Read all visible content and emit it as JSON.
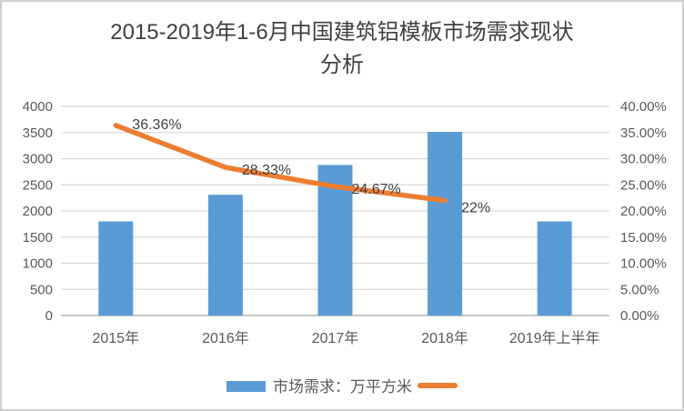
{
  "chart_data": {
    "type": "bar",
    "combo": "bar+line",
    "title": "2015-2019年1-6月中国建筑铝模板市场需求现状分析",
    "categories": [
      "2015年",
      "2016年",
      "2017年",
      "2018年",
      "2019年上半年"
    ],
    "series": [
      {
        "name": "市场需求：万平方米",
        "type": "bar",
        "axis": "left",
        "color": "#5B9BD5",
        "values": [
          1800,
          2310,
          2880,
          3513,
          1800
        ]
      },
      {
        "name": "",
        "type": "line",
        "axis": "right",
        "color": "#ED7D31",
        "values": [
          36.36,
          28.33,
          24.67,
          22,
          null
        ],
        "point_labels": [
          "36.36%",
          "28.33%",
          "24.67%",
          "22%",
          ""
        ]
      }
    ],
    "left_axis": {
      "min": 0,
      "max": 4000,
      "step": 500,
      "tick_labels": [
        "0",
        "500",
        "1000",
        "1500",
        "2000",
        "2500",
        "3000",
        "3500",
        "4000"
      ]
    },
    "right_axis": {
      "min": 0,
      "max": 40,
      "step": 5,
      "tick_labels": [
        "0.00%",
        "5.00%",
        "10.00%",
        "15.00%",
        "20.00%",
        "25.00%",
        "30.00%",
        "35.00%",
        "40.00%"
      ]
    },
    "gridlines": true,
    "legend_position": "bottom"
  },
  "colors": {
    "bar": "#5B9BD5",
    "line": "#ED7D31",
    "gridline": "#D9D9D9",
    "axis_line": "#BFBFBF",
    "tick_text": "#595959",
    "title_text": "#404040",
    "data_label_text": "#404040",
    "background": "#FFFFFF",
    "frame_border": "#CFCFCF"
  }
}
